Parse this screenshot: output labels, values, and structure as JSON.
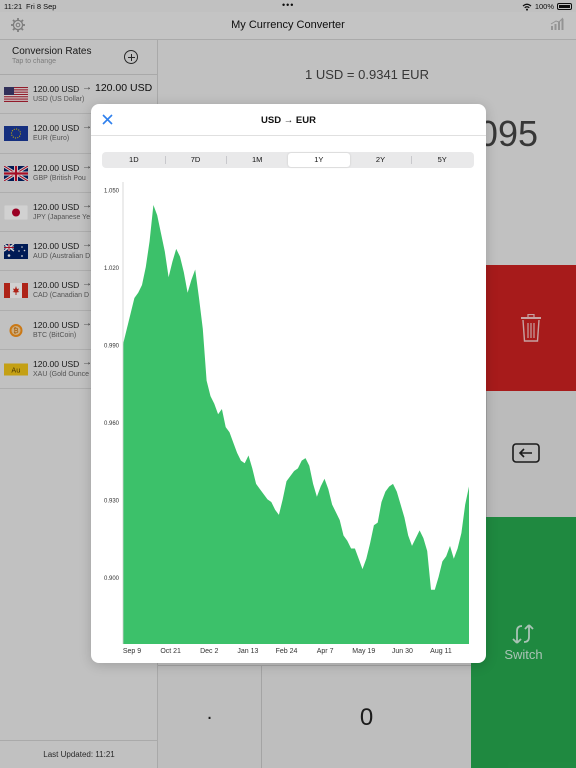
{
  "status": {
    "time": "11:21",
    "date": "Fri 8 Sep",
    "battery": "100%"
  },
  "app": {
    "title": "My Currency Converter"
  },
  "sidebar": {
    "header": "Conversion Rates",
    "subheader": "Tap to change",
    "footer": "Last Updated: 11:21",
    "rows": [
      {
        "flag": "us",
        "amount": "120.00 USD",
        "arrow": "→",
        "converted": "120.00 USD",
        "name": "USD (US Dollar)"
      },
      {
        "flag": "eu",
        "amount": "120.00 USD",
        "arrow": "→",
        "converted": "",
        "name": "EUR (Euro)"
      },
      {
        "flag": "gb",
        "amount": "120.00 USD",
        "arrow": "→",
        "converted": "",
        "name": "GBP (British Pou"
      },
      {
        "flag": "jp",
        "amount": "120.00 USD",
        "arrow": "→",
        "converted": "",
        "name": "JPY (Japanese Ye"
      },
      {
        "flag": "au",
        "amount": "120.00 USD",
        "arrow": "→",
        "converted": "",
        "name": "AUD (Australian D"
      },
      {
        "flag": "ca",
        "amount": "120.00 USD",
        "arrow": "→",
        "converted": "",
        "name": "CAD (Canadian D"
      },
      {
        "flag": "btc",
        "amount": "120.00 USD",
        "arrow": "→",
        "converted": "",
        "name": "BTC (BitCoin)"
      },
      {
        "flag": "xau",
        "amount": "120.00 USD",
        "arrow": "→",
        "converted": "",
        "name": "XAU (Gold Ounce"
      }
    ]
  },
  "main": {
    "rate": "1 USD = 0.9341 EUR",
    "value": "095",
    "keys": {
      "switch": "Switch",
      "dot": ".",
      "zero": "0"
    }
  },
  "modal": {
    "title": "USD → EUR",
    "ranges": [
      "1D",
      "7D",
      "1M",
      "1Y",
      "2Y",
      "5Y"
    ],
    "selected_range": "1Y"
  },
  "colors": {
    "accent": "#2f80ed",
    "delete": "#cc2222",
    "switch": "#27a84f",
    "chart": "#3cc16a"
  },
  "chart_data": {
    "type": "area",
    "title": "",
    "xlabel": "",
    "ylabel": "",
    "x_tick_labels": [
      "Sep 9",
      "Oct 21",
      "Dec 2",
      "Jan 13",
      "Feb 24",
      "Apr 7",
      "May 19",
      "Jun 30",
      "Aug 11"
    ],
    "y_tick_labels": [
      "1.050",
      "1.020",
      "0.990",
      "0.960",
      "0.930",
      "0.900"
    ],
    "y_ticks": [
      1.05,
      1.02,
      0.99,
      0.96,
      0.93,
      0.9
    ],
    "ylim": [
      0.874,
      1.056
    ],
    "x_range": [
      "Sep 7",
      "Sep 8"
    ],
    "grid": false,
    "series": [
      {
        "values": [
          0.99,
          0.996,
          1.002,
          1.008,
          1.01,
          1.013,
          1.02,
          1.03,
          1.044,
          1.04,
          1.033,
          1.026,
          1.016,
          1.022,
          1.027,
          1.024,
          1.018,
          1.01,
          1.015,
          1.019,
          1.008,
          0.996,
          0.976,
          0.97,
          0.967,
          0.963,
          0.965,
          0.958,
          0.956,
          0.952,
          0.948,
          0.945,
          0.944,
          0.947,
          0.942,
          0.936,
          0.934,
          0.932,
          0.93,
          0.929,
          0.926,
          0.924,
          0.93,
          0.937,
          0.939,
          0.941,
          0.942,
          0.945,
          0.946,
          0.943,
          0.936,
          0.931,
          0.935,
          0.938,
          0.934,
          0.928,
          0.925,
          0.922,
          0.916,
          0.914,
          0.911,
          0.911,
          0.907,
          0.903,
          0.907,
          0.913,
          0.92,
          0.921,
          0.929,
          0.933,
          0.935,
          0.936,
          0.933,
          0.928,
          0.923,
          0.916,
          0.912,
          0.915,
          0.918,
          0.915,
          0.91,
          0.895,
          0.895,
          0.9,
          0.906,
          0.908,
          0.912,
          0.907,
          0.911,
          0.917,
          0.928,
          0.935
        ]
      }
    ]
  }
}
